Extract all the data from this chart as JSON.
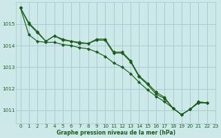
{
  "background_color": "#cce8e8",
  "grid_color": "#aacccc",
  "line_color": "#1a5c1a",
  "xlabel": "Graphe pression niveau de la mer (hPa)",
  "xlim": [
    -0.5,
    23
  ],
  "ylim": [
    1010.4,
    1016.0
  ],
  "yticks": [
    1011,
    1012,
    1013,
    1014,
    1015
  ],
  "xticks": [
    0,
    1,
    2,
    3,
    4,
    5,
    6,
    7,
    8,
    9,
    10,
    11,
    12,
    13,
    14,
    15,
    16,
    17,
    18,
    19,
    20,
    21,
    22,
    23
  ],
  "line1_x": [
    0,
    1,
    2,
    3,
    4,
    5,
    6,
    7,
    8,
    9,
    10,
    11,
    12,
    13,
    14,
    15,
    16,
    17,
    18,
    19,
    20,
    21,
    22
  ],
  "line1_y": [
    1015.75,
    1015.0,
    1014.6,
    1014.2,
    1014.45,
    1014.25,
    1014.2,
    1014.1,
    1014.1,
    1014.25,
    1014.25,
    1013.65,
    1013.65,
    1013.25,
    1012.55,
    1012.2,
    1011.75,
    1011.55,
    1011.1,
    1010.8,
    1011.05,
    1011.4,
    1011.35
  ],
  "line2_x": [
    0,
    1,
    2,
    3,
    4,
    5,
    6,
    7,
    8,
    9,
    10,
    11,
    12,
    13,
    14,
    15,
    16,
    17,
    18,
    19,
    20,
    21,
    22
  ],
  "line2_y": [
    1015.75,
    1015.05,
    1014.65,
    1014.2,
    1014.45,
    1014.3,
    1014.2,
    1014.15,
    1014.1,
    1014.3,
    1014.3,
    1013.7,
    1013.7,
    1013.3,
    1012.6,
    1012.25,
    1011.85,
    1011.6,
    1011.1,
    1010.8,
    1011.05,
    1011.35,
    1011.35
  ],
  "line3_x": [
    0,
    1,
    2,
    3,
    4,
    5,
    6,
    7,
    8,
    9,
    10,
    11,
    12,
    13,
    14,
    15,
    16,
    17,
    18,
    19,
    20,
    21,
    22
  ],
  "line3_y": [
    1015.75,
    1014.5,
    1014.2,
    1014.15,
    1014.15,
    1014.05,
    1014.0,
    1013.9,
    1013.85,
    1013.7,
    1013.5,
    1013.2,
    1013.0,
    1012.7,
    1012.3,
    1011.95,
    1011.65,
    1011.4,
    1011.1,
    1010.8,
    1011.05,
    1011.35,
    1011.35
  ],
  "xlabel_fontsize": 5.5,
  "tick_fontsize": 5.2
}
